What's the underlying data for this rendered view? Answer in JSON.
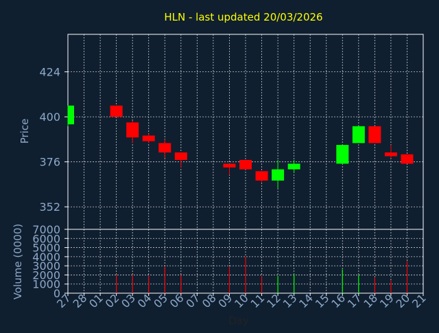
{
  "colors": {
    "background": "#0f1f30",
    "axis": "#ffffff",
    "grid": "#cccccc",
    "title": "#ffff00",
    "label": "#8ea9c8",
    "up": "#00ff00",
    "down": "#ff0000"
  },
  "chart_data": [
    {
      "type": "candlestick",
      "title": "HLN - last updated 20/03/2026",
      "ylabel": "Price",
      "xlabel": "",
      "ylim": [
        340,
        444
      ],
      "yticks": [
        352,
        376,
        400,
        424
      ],
      "grid": true,
      "x": [
        "27",
        "28",
        "01",
        "02",
        "03",
        "04",
        "05",
        "06",
        "07",
        "08",
        "09",
        "10",
        "11",
        "12",
        "13",
        "14",
        "15",
        "16",
        "17",
        "18",
        "19",
        "20",
        "21"
      ],
      "candles": [
        {
          "x": "27",
          "open": 396,
          "high": 406,
          "low": 395,
          "close": 406
        },
        {
          "x": "02",
          "open": 406,
          "high": 406,
          "low": 400,
          "close": 400
        },
        {
          "x": "03",
          "open": 397,
          "high": 398,
          "low": 386,
          "close": 389
        },
        {
          "x": "04",
          "open": 390,
          "high": 391,
          "low": 386,
          "close": 387
        },
        {
          "x": "05",
          "open": 386,
          "high": 388,
          "low": 378,
          "close": 381
        },
        {
          "x": "06",
          "open": 381,
          "high": 381,
          "low": 373,
          "close": 377
        },
        {
          "x": "09",
          "open": 375,
          "high": 375,
          "low": 369,
          "close": 373
        },
        {
          "x": "10",
          "open": 377,
          "high": 377,
          "low": 372,
          "close": 372
        },
        {
          "x": "11",
          "open": 371,
          "high": 371,
          "low": 365,
          "close": 366
        },
        {
          "x": "12",
          "open": 366,
          "high": 377,
          "low": 362,
          "close": 372
        },
        {
          "x": "13",
          "open": 372,
          "high": 377,
          "low": 370,
          "close": 375
        },
        {
          "x": "16",
          "open": 375,
          "high": 385,
          "low": 375,
          "close": 385
        },
        {
          "x": "17",
          "open": 386,
          "high": 395,
          "low": 386,
          "close": 395
        },
        {
          "x": "18",
          "open": 395,
          "high": 395,
          "low": 386,
          "close": 386
        },
        {
          "x": "19",
          "open": 381,
          "high": 385,
          "low": 378,
          "close": 379
        },
        {
          "x": "20",
          "open": 380,
          "high": 380,
          "low": 375,
          "close": 375
        }
      ]
    },
    {
      "type": "bar",
      "ylabel": "Volume (0000)",
      "xlabel": "Day",
      "ylim": [
        0,
        7000
      ],
      "yticks": [
        0,
        1000,
        2000,
        3000,
        4000,
        5000,
        6000,
        7000
      ],
      "grid": true,
      "categories": [
        "27",
        "28",
        "01",
        "02",
        "03",
        "04",
        "05",
        "06",
        "07",
        "08",
        "09",
        "10",
        "11",
        "12",
        "13",
        "14",
        "15",
        "16",
        "17",
        "18",
        "19",
        "20",
        "21"
      ],
      "values": [
        null,
        null,
        null,
        2000,
        2000,
        1900,
        2900,
        2000,
        null,
        null,
        2900,
        4000,
        1900,
        1900,
        2100,
        null,
        null,
        2600,
        2000,
        1700,
        1400,
        3500,
        null
      ],
      "directions": [
        null,
        null,
        null,
        "down",
        "down",
        "down",
        "down",
        "down",
        null,
        null,
        "down",
        "down",
        "down",
        "up",
        "up",
        null,
        null,
        "up",
        "up",
        "down",
        "down",
        "down",
        null
      ]
    }
  ]
}
